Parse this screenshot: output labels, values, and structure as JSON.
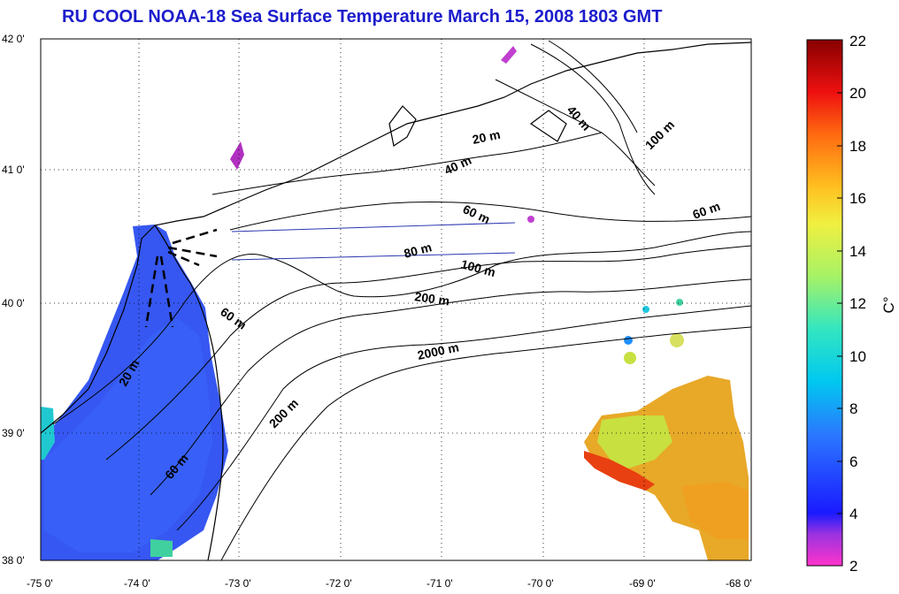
{
  "title": "RU COOL  NOAA-18 Sea Surface Temperature March 15, 2008 1803 GMT",
  "map": {
    "lat_ticks": [
      "42 0'",
      "41 0'",
      "40 0'",
      "39 0'",
      "38 0'"
    ],
    "lon_ticks": [
      "-75 0'",
      "-74 0'",
      "-73 0'",
      "-72 0'",
      "-71 0'",
      "-70 0'",
      "-69 0'",
      "-68 0'"
    ],
    "lat_range": [
      38,
      42
    ],
    "lon_range": [
      -75,
      -68
    ],
    "depth_labels": [
      "20 m",
      "40 m",
      "40 m",
      "100 m",
      "60 m",
      "60 m",
      "80 m",
      "100 m",
      "200 m",
      "2000 m",
      "60 m",
      "20 m",
      "200 m",
      "60 m"
    ]
  },
  "colorbar": {
    "unit": "C°",
    "ticks": [
      "22",
      "20",
      "18",
      "16",
      "14",
      "12",
      "10",
      "8",
      "6",
      "4",
      "2"
    ],
    "range": [
      2,
      22
    ]
  },
  "colors": {
    "title": "#1c1ccc",
    "land": "#ffffff",
    "cold_water": "#2b4ef0",
    "warm_water": "#e8a828",
    "coastline": "#000000"
  }
}
